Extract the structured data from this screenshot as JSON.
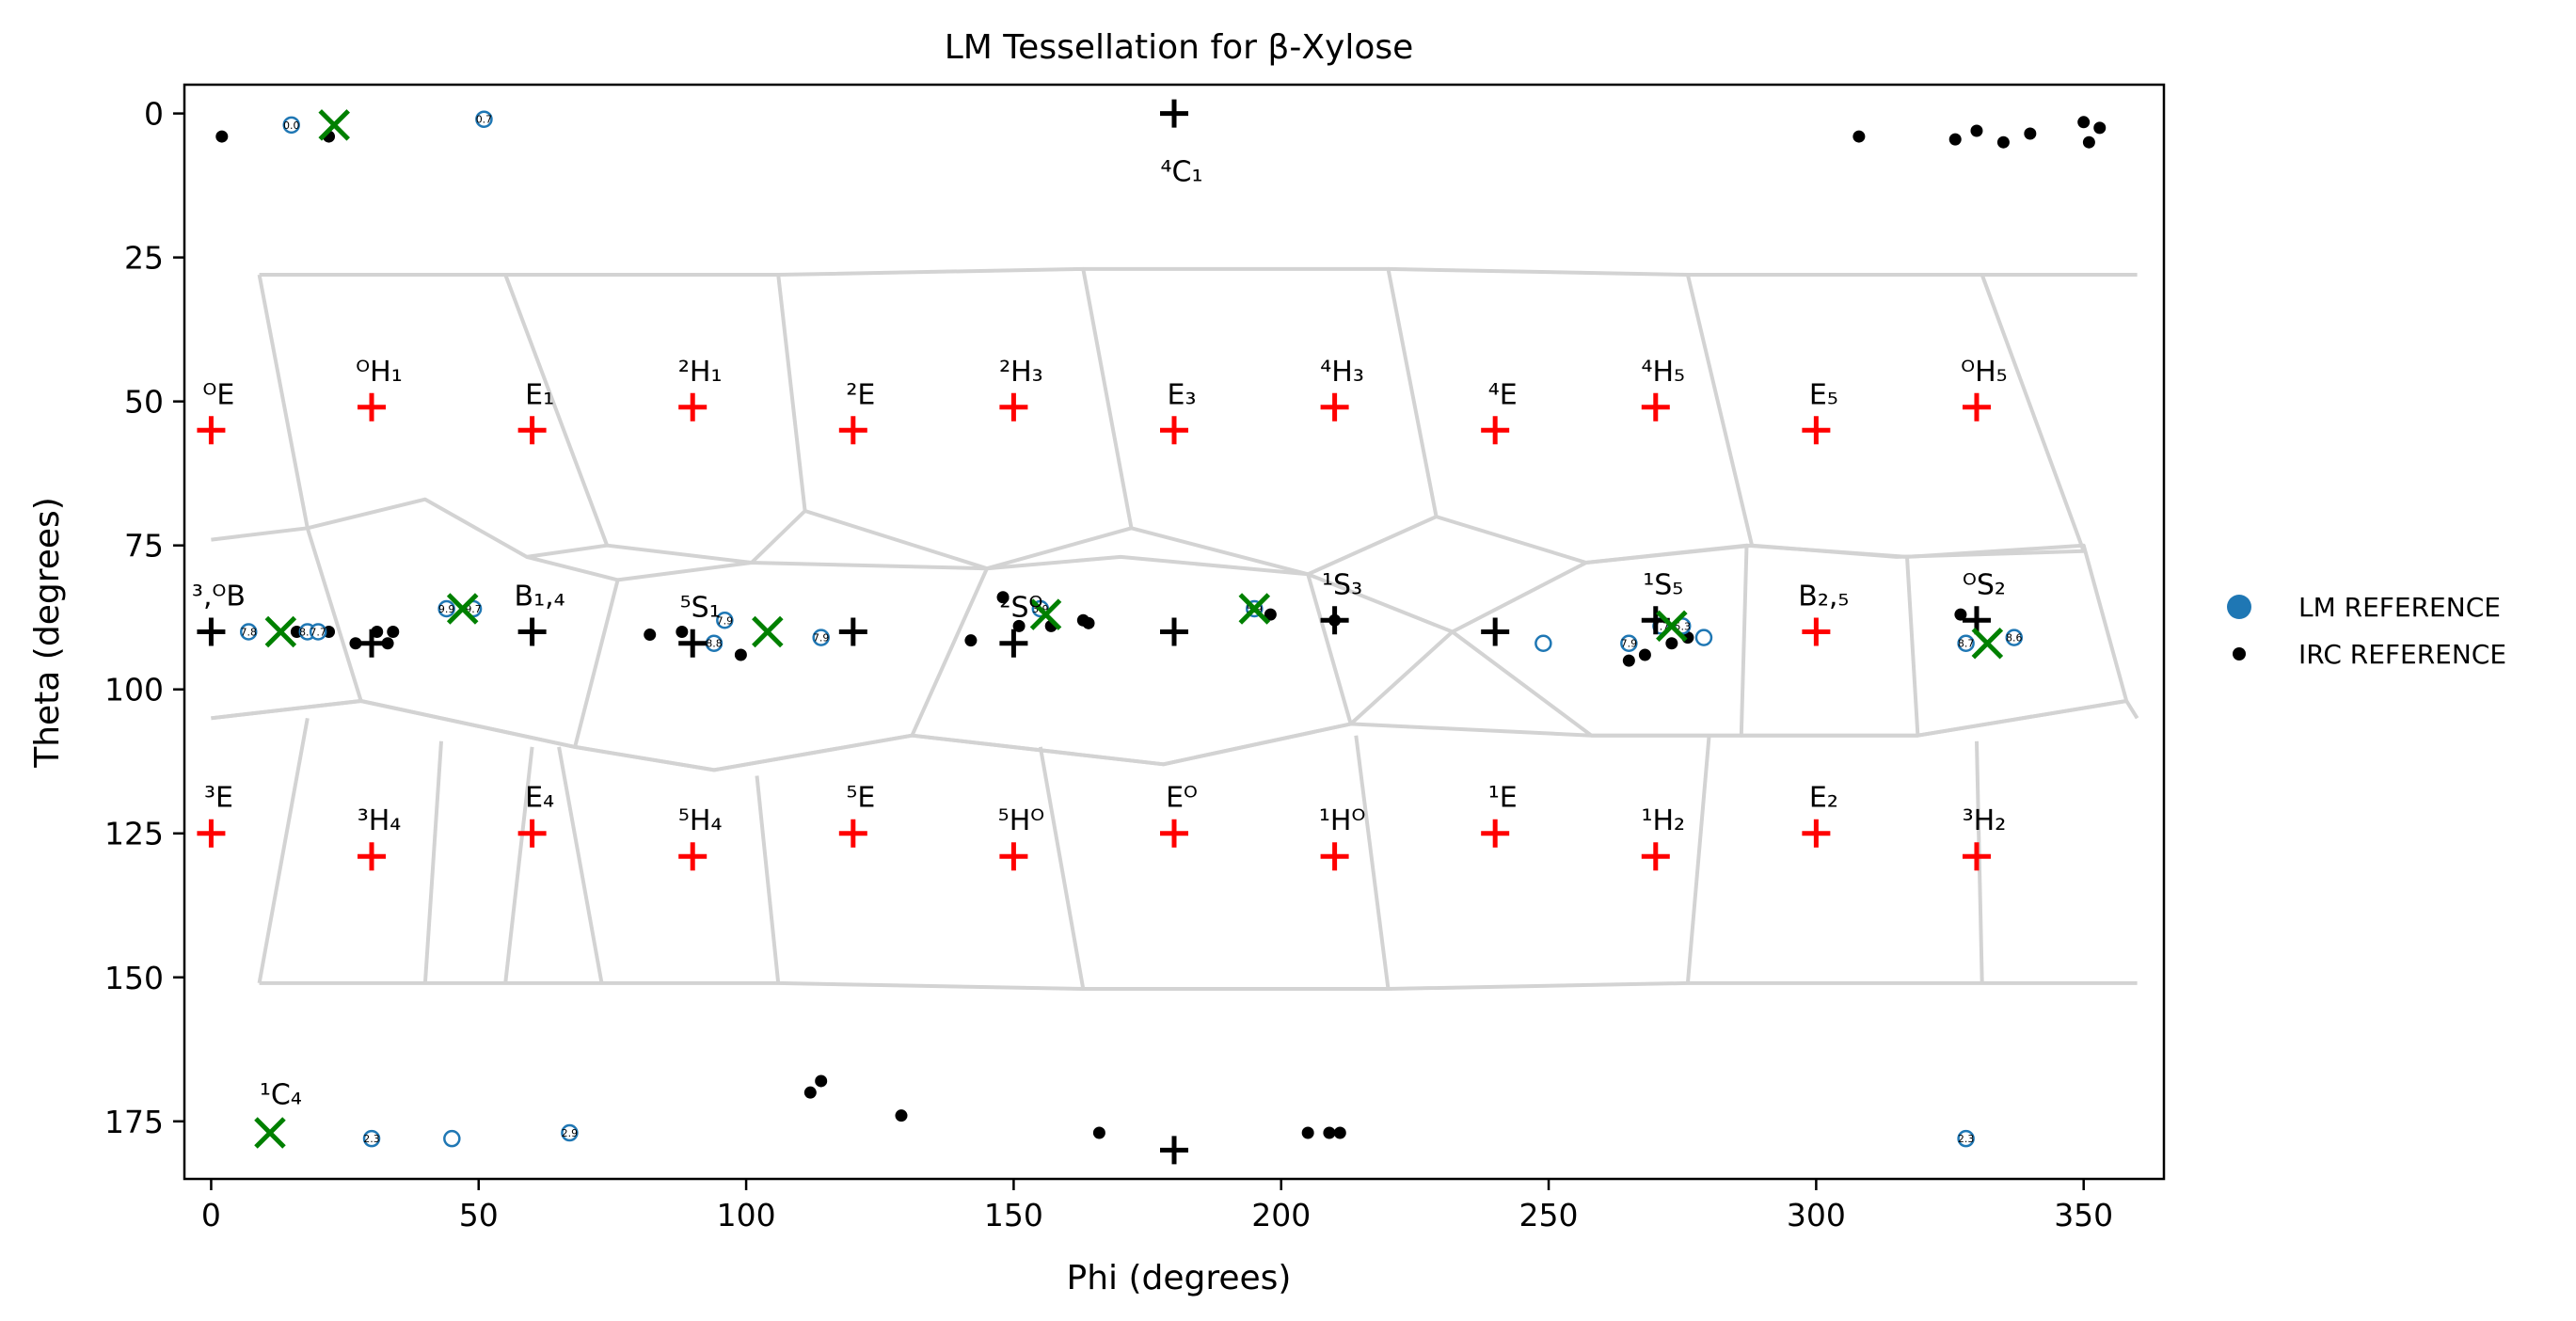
{
  "chart_data": {
    "type": "scatter",
    "title": "LM Tessellation for β-Xylose",
    "xlabel": "Phi (degrees)",
    "ylabel": "Theta (degrees)",
    "xlim": [
      -5,
      365
    ],
    "ylim": [
      185,
      -5
    ],
    "xticks": [
      0,
      50,
      100,
      150,
      200,
      250,
      300,
      350
    ],
    "yticks": [
      0,
      25,
      50,
      75,
      100,
      125,
      150,
      175
    ],
    "grid": false,
    "legend_position": "right",
    "legend": [
      {
        "name": "LM REFERENCE",
        "marker": "circle",
        "color": "#1f77b4"
      },
      {
        "name": "IRC REFERENCE",
        "marker": "dot",
        "color": "#000000"
      }
    ],
    "colors": {
      "tessellation": "#d3d3d3",
      "canonical_plus_red": "#ff0000",
      "canonical_plus_black": "#000000",
      "lm_x": "#008000",
      "lm_reference": "#1f77b4",
      "irc_reference": "#000000"
    },
    "canonical_points": [
      {
        "label": "⁴C₁",
        "phi": 180,
        "theta": 0,
        "color": "black"
      },
      {
        "label": "ᴼE",
        "phi": 0,
        "theta": 55,
        "color": "red"
      },
      {
        "label": "ᴼH₁",
        "phi": 30,
        "theta": 51,
        "color": "red"
      },
      {
        "label": "E₁",
        "phi": 60,
        "theta": 55,
        "color": "red"
      },
      {
        "label": "²H₁",
        "phi": 90,
        "theta": 51,
        "color": "red"
      },
      {
        "label": "²E",
        "phi": 120,
        "theta": 55,
        "color": "red"
      },
      {
        "label": "²H₃",
        "phi": 150,
        "theta": 51,
        "color": "red"
      },
      {
        "label": "E₃",
        "phi": 180,
        "theta": 55,
        "color": "red"
      },
      {
        "label": "⁴H₃",
        "phi": 210,
        "theta": 51,
        "color": "red"
      },
      {
        "label": "⁴E",
        "phi": 240,
        "theta": 55,
        "color": "red"
      },
      {
        "label": "⁴H₅",
        "phi": 270,
        "theta": 51,
        "color": "red"
      },
      {
        "label": "E₅",
        "phi": 300,
        "theta": 55,
        "color": "red"
      },
      {
        "label": "ᴼH₅",
        "phi": 330,
        "theta": 51,
        "color": "red"
      },
      {
        "label": "³,ᴼB",
        "phi": 0,
        "theta": 90,
        "color": "black"
      },
      {
        "label": "B₁,₄",
        "phi": 60,
        "theta": 90,
        "color": "black"
      },
      {
        "label": "⁵S₁",
        "phi": 90,
        "theta": 92,
        "color": "black"
      },
      {
        "label": "",
        "phi": 120,
        "theta": 90,
        "color": "black"
      },
      {
        "label": "²Sᴼ",
        "phi": 150,
        "theta": 92,
        "color": "black"
      },
      {
        "label": "",
        "phi": 180,
        "theta": 90,
        "color": "black"
      },
      {
        "label": "¹S₃",
        "phi": 210,
        "theta": 88,
        "color": "black"
      },
      {
        "label": "",
        "phi": 240,
        "theta": 90,
        "color": "black"
      },
      {
        "label": "¹S₅",
        "phi": 270,
        "theta": 88,
        "color": "black"
      },
      {
        "label": "B₂,₅",
        "phi": 300,
        "theta": 90,
        "color": "red"
      },
      {
        "label": "ᴼS₂",
        "phi": 330,
        "theta": 88,
        "color": "black"
      },
      {
        "label": "",
        "phi": 30,
        "theta": 92,
        "color": "black"
      },
      {
        "label": "³E",
        "phi": 0,
        "theta": 125,
        "color": "red"
      },
      {
        "label": "³H₄",
        "phi": 30,
        "theta": 129,
        "color": "red"
      },
      {
        "label": "E₄",
        "phi": 60,
        "theta": 125,
        "color": "red"
      },
      {
        "label": "⁵H₄",
        "phi": 90,
        "theta": 129,
        "color": "red"
      },
      {
        "label": "⁵E",
        "phi": 120,
        "theta": 125,
        "color": "red"
      },
      {
        "label": "⁵Hᴼ",
        "phi": 150,
        "theta": 129,
        "color": "red"
      },
      {
        "label": "Eᴼ",
        "phi": 180,
        "theta": 125,
        "color": "red"
      },
      {
        "label": "¹Hᴼ",
        "phi": 210,
        "theta": 129,
        "color": "red"
      },
      {
        "label": "¹E",
        "phi": 240,
        "theta": 125,
        "color": "red"
      },
      {
        "label": "¹H₂",
        "phi": 270,
        "theta": 129,
        "color": "red"
      },
      {
        "label": "E₂",
        "phi": 300,
        "theta": 125,
        "color": "red"
      },
      {
        "label": "³H₂",
        "phi": 330,
        "theta": 129,
        "color": "red"
      },
      {
        "label": "",
        "phi": 180,
        "theta": 180,
        "color": "black"
      }
    ],
    "lm_points": [
      {
        "phi": 23,
        "theta": 2
      },
      {
        "phi": 13,
        "theta": 90
      },
      {
        "phi": 47,
        "theta": 86
      },
      {
        "phi": 104,
        "theta": 90
      },
      {
        "phi": 156,
        "theta": 87
      },
      {
        "phi": 195,
        "theta": 86
      },
      {
        "phi": 273,
        "theta": 89
      },
      {
        "phi": 332,
        "theta": 92
      },
      {
        "phi": 11,
        "theta": 177
      }
    ],
    "lm_reference": [
      {
        "phi": 15,
        "theta": 2,
        "label": "0.0"
      },
      {
        "phi": 51,
        "theta": 1,
        "label": "0.7"
      },
      {
        "phi": 7,
        "theta": 90,
        "label": "7.8"
      },
      {
        "phi": 18,
        "theta": 90,
        "label": "8.0"
      },
      {
        "phi": 20,
        "theta": 90,
        "label": "7.7"
      },
      {
        "phi": 44,
        "theta": 86,
        "label": "9.9"
      },
      {
        "phi": 49,
        "theta": 86,
        "label": "9.7"
      },
      {
        "phi": 96,
        "theta": 88,
        "label": "7.9"
      },
      {
        "phi": 94,
        "theta": 92,
        "label": "8.8"
      },
      {
        "phi": 114,
        "theta": 91,
        "label": "7.9"
      },
      {
        "phi": 155,
        "theta": 86,
        "label": "3.9"
      },
      {
        "phi": 195,
        "theta": 86,
        "label": "5.9"
      },
      {
        "phi": 249,
        "theta": 92,
        "label": ""
      },
      {
        "phi": 265,
        "theta": 92,
        "label": "7.9"
      },
      {
        "phi": 271,
        "theta": 89,
        "label": "7.7"
      },
      {
        "phi": 275,
        "theta": 89,
        "label": "5.3"
      },
      {
        "phi": 279,
        "theta": 91,
        "label": ""
      },
      {
        "phi": 328,
        "theta": 92,
        "label": "8.7"
      },
      {
        "phi": 337,
        "theta": 91,
        "label": "8.6"
      },
      {
        "phi": 30,
        "theta": 178,
        "label": "2.3"
      },
      {
        "phi": 45,
        "theta": 178,
        "label": ""
      },
      {
        "phi": 67,
        "theta": 177,
        "label": "2.9"
      },
      {
        "phi": 328,
        "theta": 178,
        "label": "2.3"
      }
    ],
    "irc_reference": [
      {
        "phi": 2,
        "theta": 4
      },
      {
        "phi": 22,
        "theta": 4
      },
      {
        "phi": 308,
        "theta": 4
      },
      {
        "phi": 326,
        "theta": 4.5
      },
      {
        "phi": 330,
        "theta": 3
      },
      {
        "phi": 335,
        "theta": 5
      },
      {
        "phi": 340,
        "theta": 3.5
      },
      {
        "phi": 350,
        "theta": 1.5
      },
      {
        "phi": 351,
        "theta": 5
      },
      {
        "phi": 353,
        "theta": 2.5
      },
      {
        "phi": 16,
        "theta": 90
      },
      {
        "phi": 22,
        "theta": 90
      },
      {
        "phi": 27,
        "theta": 92
      },
      {
        "phi": 31,
        "theta": 90
      },
      {
        "phi": 33,
        "theta": 92
      },
      {
        "phi": 34,
        "theta": 90
      },
      {
        "phi": 82,
        "theta": 90.5
      },
      {
        "phi": 88,
        "theta": 90
      },
      {
        "phi": 99,
        "theta": 94
      },
      {
        "phi": 142,
        "theta": 91.5
      },
      {
        "phi": 148,
        "theta": 84
      },
      {
        "phi": 151,
        "theta": 89
      },
      {
        "phi": 157,
        "theta": 89
      },
      {
        "phi": 163,
        "theta": 88
      },
      {
        "phi": 164,
        "theta": 88.5
      },
      {
        "phi": 198,
        "theta": 87
      },
      {
        "phi": 210,
        "theta": 88
      },
      {
        "phi": 249,
        "theta": 92
      },
      {
        "phi": 265,
        "theta": 95
      },
      {
        "phi": 268,
        "theta": 94
      },
      {
        "phi": 273,
        "theta": 92
      },
      {
        "phi": 276,
        "theta": 91
      },
      {
        "phi": 279,
        "theta": 91
      },
      {
        "phi": 327,
        "theta": 87
      },
      {
        "phi": 45,
        "theta": 178
      },
      {
        "phi": 112,
        "theta": 170
      },
      {
        "phi": 114,
        "theta": 168
      },
      {
        "phi": 129,
        "theta": 174
      },
      {
        "phi": 166,
        "theta": 177
      },
      {
        "phi": 205,
        "theta": 177
      },
      {
        "phi": 209,
        "theta": 177
      },
      {
        "phi": 211,
        "theta": 177
      }
    ],
    "tessellation_cells": [
      [
        [
          9,
          28
        ],
        [
          55,
          28
        ],
        [
          74,
          75
        ],
        [
          59,
          77
        ],
        [
          40,
          67
        ],
        [
          18,
          72
        ],
        [
          9,
          28
        ]
      ],
      [
        [
          55,
          28
        ],
        [
          106,
          28
        ],
        [
          111,
          69
        ],
        [
          101,
          78
        ],
        [
          74,
          75
        ]
      ],
      [
        [
          106,
          28
        ],
        [
          163,
          27
        ],
        [
          172,
          72
        ],
        [
          145,
          79
        ],
        [
          111,
          69
        ]
      ],
      [
        [
          163,
          27
        ],
        [
          220,
          27
        ],
        [
          229,
          70
        ],
        [
          205,
          80
        ],
        [
          172,
          72
        ]
      ],
      [
        [
          220,
          27
        ],
        [
          276,
          28
        ],
        [
          288,
          75
        ],
        [
          257,
          78
        ],
        [
          229,
          70
        ]
      ],
      [
        [
          276,
          28
        ],
        [
          331,
          28
        ],
        [
          350,
          76
        ],
        [
          315,
          77
        ],
        [
          288,
          75
        ]
      ],
      [
        [
          331,
          28
        ],
        [
          360,
          28
        ]
      ],
      [
        [
          0,
          74
        ],
        [
          18,
          72
        ],
        [
          28,
          102
        ],
        [
          0,
          105
        ]
      ],
      [
        [
          28,
          102
        ],
        [
          68,
          110
        ],
        [
          76,
          81
        ],
        [
          59,
          77
        ]
      ],
      [
        [
          76,
          81
        ],
        [
          101,
          78
        ],
        [
          145,
          79
        ],
        [
          131,
          108
        ],
        [
          94,
          114
        ],
        [
          68,
          110
        ]
      ],
      [
        [
          145,
          79
        ],
        [
          170,
          77
        ],
        [
          205,
          80
        ],
        [
          213,
          106
        ],
        [
          178,
          113
        ],
        [
          131,
          108
        ]
      ],
      [
        [
          205,
          80
        ],
        [
          232,
          90
        ],
        [
          213,
          106
        ]
      ],
      [
        [
          232,
          90
        ],
        [
          257,
          78
        ],
        [
          287,
          75
        ],
        [
          286,
          108
        ],
        [
          258,
          108
        ],
        [
          232,
          90
        ]
      ],
      [
        [
          287,
          75
        ],
        [
          317,
          77
        ],
        [
          319,
          108
        ],
        [
          286,
          108
        ]
      ],
      [
        [
          317,
          77
        ],
        [
          350,
          75
        ],
        [
          358,
          102
        ],
        [
          319,
          108
        ]
      ],
      [
        [
          0,
          105
        ],
        [
          28,
          102
        ],
        [
          68,
          110
        ],
        [
          94,
          114
        ],
        [
          131,
          108
        ],
        [
          178,
          113
        ],
        [
          213,
          106
        ],
        [
          258,
          108
        ],
        [
          286,
          108
        ],
        [
          319,
          108
        ],
        [
          358,
          102
        ],
        [
          360,
          105
        ]
      ],
      [
        [
          9,
          151
        ],
        [
          55,
          151
        ],
        [
          106,
          151
        ],
        [
          163,
          152
        ],
        [
          220,
          152
        ],
        [
          276,
          151
        ],
        [
          331,
          151
        ],
        [
          360,
          151
        ]
      ],
      [
        [
          9,
          151
        ],
        [
          18,
          105
        ]
      ],
      [
        [
          55,
          151
        ],
        [
          60,
          110
        ]
      ],
      [
        [
          106,
          151
        ],
        [
          102,
          115
        ]
      ],
      [
        [
          163,
          152
        ],
        [
          155,
          110
        ]
      ],
      [
        [
          220,
          152
        ],
        [
          214,
          108
        ]
      ],
      [
        [
          276,
          151
        ],
        [
          280,
          108
        ]
      ],
      [
        [
          331,
          151
        ],
        [
          330,
          109
        ]
      ],
      [
        [
          40,
          151
        ],
        [
          43,
          109
        ]
      ],
      [
        [
          73,
          151
        ],
        [
          65,
          110
        ]
      ]
    ]
  }
}
